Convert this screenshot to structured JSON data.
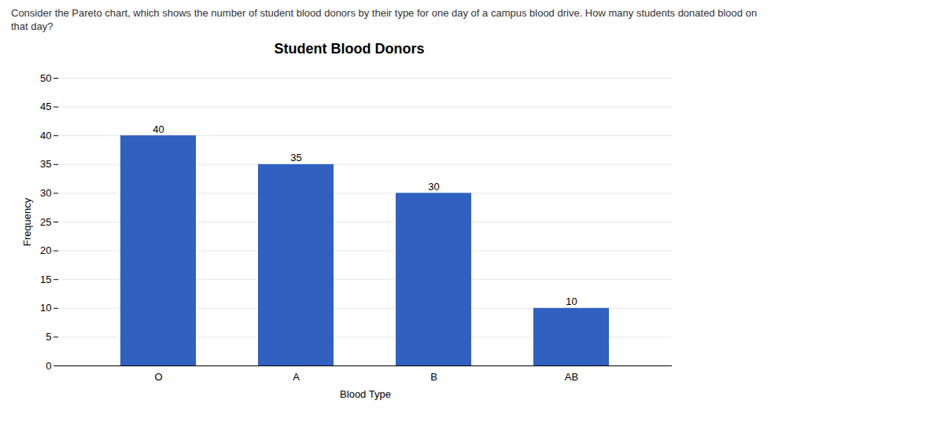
{
  "chart_data": {
    "type": "bar",
    "title": "Student Blood Donors",
    "annotations": [
      "Consider the Pareto chart, which shows the number of student blood donors by their type for one day of a campus blood drive. How many students donated blood on",
      "that day?"
    ],
    "x_label": "Blood Type",
    "y_label": "Frequency",
    "categories": [
      "O",
      "A",
      "B",
      "AB"
    ],
    "values": [
      40,
      35,
      30,
      10
    ],
    "color": "#3060C0",
    "ylim": [
      0,
      50
    ],
    "yticks": [
      0,
      5,
      10,
      15,
      20,
      25,
      30,
      35,
      40,
      45,
      50
    ],
    "grid": true,
    "data_labels": true
  }
}
